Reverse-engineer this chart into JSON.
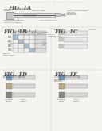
{
  "bg_color": "#f5f4f0",
  "text_color": "#555555",
  "line_color": "#888888",
  "dark_line": "#444444",
  "fig_titles": [
    "FIG. 1A",
    "FIG. 1B",
    "FIG. 1C",
    "FIG. 1D",
    "FIG. 1E"
  ],
  "header": "Patent Application Publication  Jan. 2, 2001  Sheet 1 of 3  US 6,xxx,xxx B1",
  "box_gray": "#c8c8c8",
  "box_light": "#e8e8e8",
  "box_dark": "#999999",
  "sq_blue": "#7799bb",
  "sq_tan": "#bbaa88",
  "sq_dark": "#888877"
}
